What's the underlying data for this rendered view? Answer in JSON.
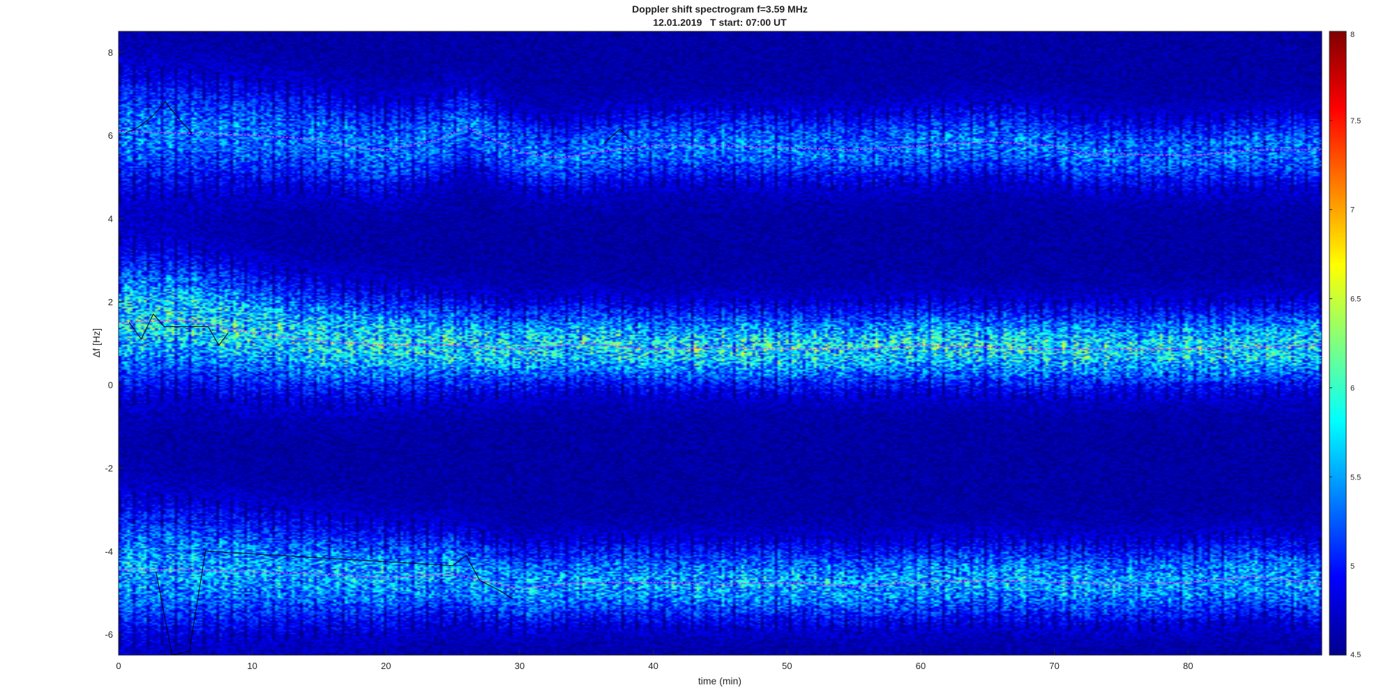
{
  "chart_data": {
    "type": "heatmap",
    "title": "Doppler shift spectrogram f=3.59 MHz",
    "subtitle": "12.01.2019   T start: 07:00 UT",
    "xlabel": "time (min)",
    "ylabel": "Δf [Hz]",
    "xlim": [
      0,
      90
    ],
    "ylim": [
      -6.5,
      8.5
    ],
    "x_ticks": [
      0,
      10,
      20,
      30,
      40,
      50,
      60,
      70,
      80
    ],
    "y_ticks": [
      -6,
      -4,
      -2,
      0,
      2,
      4,
      6,
      8
    ],
    "colorbar": {
      "colormap": "jet",
      "range": [
        4.5,
        8
      ],
      "ticks": [
        4.5,
        5,
        5.5,
        6,
        6.5,
        7,
        7.5,
        8
      ],
      "tick_labels": [
        "4.5",
        "5",
        "5.5",
        "6",
        "6.5",
        "7",
        "7.5",
        "8"
      ]
    },
    "traces": [
      {
        "color": "#ff33ff",
        "x": [
          0,
          5,
          10,
          15,
          18,
          20,
          24,
          26,
          30,
          33,
          36,
          40,
          45,
          50,
          55,
          60,
          65,
          70,
          72,
          75,
          80,
          85,
          90
        ],
        "y": [
          6.1,
          6.05,
          6.0,
          5.9,
          5.7,
          5.65,
          5.9,
          6.2,
          5.6,
          5.45,
          5.6,
          5.75,
          5.75,
          5.7,
          5.65,
          5.75,
          5.85,
          5.75,
          5.55,
          5.55,
          5.5,
          5.65,
          5.65
        ]
      },
      {
        "color": "#ff33ff",
        "x": [
          0,
          5,
          10,
          15,
          20,
          25,
          30,
          35,
          40,
          45,
          50,
          55,
          60,
          65,
          70,
          75,
          80,
          85,
          90
        ],
        "y": [
          1.5,
          1.55,
          1.25,
          1.05,
          0.95,
          0.95,
          0.85,
          1.0,
          0.85,
          0.9,
          0.85,
          0.85,
          0.95,
          0.9,
          0.85,
          0.85,
          0.85,
          0.9,
          0.95
        ]
      },
      {
        "color": "#ff33ff",
        "x": [
          0,
          5,
          10,
          15,
          20,
          25,
          30,
          35,
          40,
          45,
          50,
          55,
          60,
          65,
          70,
          75,
          80,
          85,
          90
        ],
        "y": [
          -4.45,
          -4.45,
          -4.5,
          -4.55,
          -4.65,
          -4.55,
          -4.9,
          -4.75,
          -4.75,
          -4.8,
          -4.75,
          -4.85,
          -4.75,
          -4.7,
          -4.75,
          -4.8,
          -4.75,
          -4.6,
          -4.8
        ]
      },
      {
        "color": "#000000",
        "x": [
          0.5,
          1.5,
          2.5,
          3.5,
          4.5,
          5.5
        ],
        "y": [
          6.05,
          6.2,
          6.45,
          6.8,
          6.4,
          6.05
        ]
      },
      {
        "color": "#000000",
        "x": [
          0.8,
          1.7,
          2.6,
          3.4,
          6.7,
          7.5,
          8.2
        ],
        "y": [
          1.5,
          1.1,
          1.7,
          1.4,
          1.4,
          0.95,
          1.25
        ]
      },
      {
        "color": "#000000",
        "x": [
          2.8,
          4.0,
          5.3,
          6.5,
          25.0,
          26.0,
          27.0,
          28.5,
          29.5
        ],
        "y": [
          -4.5,
          -6.5,
          -6.4,
          -4.0,
          -4.35,
          -4.1,
          -4.7,
          -4.95,
          -5.15
        ]
      },
      {
        "color": "#000000",
        "x": [
          36.3,
          37.5,
          38.3
        ],
        "y": [
          5.8,
          6.15,
          5.9
        ]
      }
    ],
    "bands": [
      {
        "center": 5.75,
        "strength": 1.0
      },
      {
        "center": 0.95,
        "strength": 1.6
      },
      {
        "center": -4.7,
        "strength": 1.25
      }
    ]
  }
}
